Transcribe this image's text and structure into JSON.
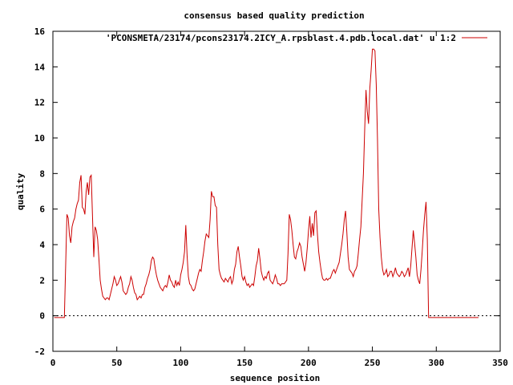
{
  "chart_data": {
    "type": "line",
    "title": "consensus based quality prediction",
    "xlabel": "sequence position",
    "ylabel": "quality",
    "xlim": [
      0,
      350
    ],
    "ylim": [
      -2,
      16
    ],
    "x_ticks": [
      0,
      50,
      100,
      150,
      200,
      250,
      300,
      350
    ],
    "y_ticks": [
      -2,
      0,
      2,
      4,
      6,
      8,
      10,
      12,
      14,
      16
    ],
    "legend_position": "top-right",
    "line_color": "#cc0000",
    "series": [
      {
        "name": "'PCONSMETA/23174/pcons23174.2ICY_A.rpsblast.4.pdb.local.dat' u 1:2",
        "points": [
          [
            1,
            -0.1
          ],
          [
            9,
            -0.1
          ],
          [
            10,
            2.8
          ],
          [
            11,
            5.7
          ],
          [
            12,
            5.5
          ],
          [
            13,
            4.5
          ],
          [
            14,
            4.1
          ],
          [
            15,
            5.0
          ],
          [
            16,
            5.3
          ],
          [
            17,
            5.5
          ],
          [
            18,
            6.0
          ],
          [
            19,
            6.3
          ],
          [
            20,
            6.5
          ],
          [
            21,
            7.5
          ],
          [
            22,
            7.9
          ],
          [
            23,
            6.1
          ],
          [
            24,
            6.0
          ],
          [
            25,
            5.7
          ],
          [
            26,
            7.0
          ],
          [
            27,
            7.5
          ],
          [
            28,
            6.8
          ],
          [
            29,
            7.8
          ],
          [
            30,
            7.9
          ],
          [
            31,
            5.6
          ],
          [
            32,
            3.3
          ],
          [
            33,
            5.0
          ],
          [
            34,
            4.8
          ],
          [
            35,
            4.3
          ],
          [
            36,
            3.2
          ],
          [
            37,
            2.0
          ],
          [
            38,
            1.5
          ],
          [
            39,
            1.1
          ],
          [
            40,
            1.0
          ],
          [
            41,
            0.9
          ],
          [
            42,
            1.0
          ],
          [
            43,
            1.0
          ],
          [
            44,
            0.9
          ],
          [
            45,
            1.2
          ],
          [
            46,
            1.5
          ],
          [
            47,
            1.8
          ],
          [
            48,
            2.2
          ],
          [
            49,
            2.0
          ],
          [
            50,
            1.7
          ],
          [
            51,
            1.8
          ],
          [
            52,
            2.0
          ],
          [
            53,
            2.2
          ],
          [
            54,
            1.9
          ],
          [
            55,
            1.4
          ],
          [
            56,
            1.3
          ],
          [
            57,
            1.2
          ],
          [
            58,
            1.3
          ],
          [
            59,
            1.6
          ],
          [
            60,
            1.8
          ],
          [
            61,
            2.2
          ],
          [
            62,
            2.0
          ],
          [
            63,
            1.6
          ],
          [
            64,
            1.3
          ],
          [
            65,
            1.2
          ],
          [
            66,
            0.9
          ],
          [
            67,
            1.0
          ],
          [
            68,
            1.1
          ],
          [
            69,
            1.0
          ],
          [
            70,
            1.2
          ],
          [
            71,
            1.2
          ],
          [
            72,
            1.6
          ],
          [
            73,
            1.8
          ],
          [
            74,
            2.1
          ],
          [
            75,
            2.3
          ],
          [
            76,
            2.6
          ],
          [
            77,
            3.1
          ],
          [
            78,
            3.3
          ],
          [
            79,
            3.2
          ],
          [
            80,
            2.7
          ],
          [
            81,
            2.3
          ],
          [
            82,
            2.0
          ],
          [
            83,
            1.8
          ],
          [
            84,
            1.6
          ],
          [
            85,
            1.5
          ],
          [
            86,
            1.4
          ],
          [
            87,
            1.6
          ],
          [
            88,
            1.7
          ],
          [
            89,
            1.6
          ],
          [
            90,
            1.9
          ],
          [
            91,
            2.3
          ],
          [
            92,
            2.0
          ],
          [
            93,
            1.9
          ],
          [
            94,
            1.7
          ],
          [
            95,
            1.6
          ],
          [
            96,
            2.0
          ],
          [
            97,
            1.7
          ],
          [
            98,
            1.9
          ],
          [
            99,
            1.7
          ],
          [
            100,
            2.3
          ],
          [
            101,
            2.6
          ],
          [
            102,
            3.0
          ],
          [
            103,
            3.6
          ],
          [
            104,
            5.1
          ],
          [
            105,
            3.4
          ],
          [
            106,
            2.2
          ],
          [
            107,
            1.8
          ],
          [
            108,
            1.7
          ],
          [
            109,
            1.5
          ],
          [
            110,
            1.4
          ],
          [
            111,
            1.5
          ],
          [
            112,
            1.8
          ],
          [
            113,
            2.1
          ],
          [
            114,
            2.4
          ],
          [
            115,
            2.6
          ],
          [
            116,
            2.5
          ],
          [
            117,
            3.1
          ],
          [
            118,
            3.6
          ],
          [
            119,
            4.2
          ],
          [
            120,
            4.6
          ],
          [
            121,
            4.5
          ],
          [
            122,
            4.4
          ],
          [
            123,
            5.4
          ],
          [
            124,
            7.0
          ],
          [
            125,
            6.7
          ],
          [
            126,
            6.7
          ],
          [
            127,
            6.2
          ],
          [
            128,
            6.1
          ],
          [
            129,
            4.0
          ],
          [
            130,
            2.6
          ],
          [
            131,
            2.3
          ],
          [
            132,
            2.1
          ],
          [
            133,
            2.0
          ],
          [
            134,
            1.9
          ],
          [
            135,
            2.1
          ],
          [
            136,
            2.0
          ],
          [
            137,
            1.9
          ],
          [
            138,
            2.1
          ],
          [
            139,
            2.2
          ],
          [
            140,
            1.8
          ],
          [
            141,
            2.0
          ],
          [
            142,
            2.6
          ],
          [
            143,
            2.9
          ],
          [
            144,
            3.6
          ],
          [
            145,
            3.9
          ],
          [
            146,
            3.3
          ],
          [
            147,
            2.8
          ],
          [
            148,
            2.2
          ],
          [
            149,
            2.0
          ],
          [
            150,
            2.2
          ],
          [
            151,
            1.9
          ],
          [
            152,
            1.7
          ],
          [
            153,
            1.8
          ],
          [
            154,
            1.6
          ],
          [
            155,
            1.7
          ],
          [
            156,
            1.8
          ],
          [
            157,
            1.7
          ],
          [
            158,
            2.2
          ],
          [
            159,
            2.8
          ],
          [
            160,
            3.1
          ],
          [
            161,
            3.8
          ],
          [
            162,
            3.2
          ],
          [
            163,
            2.5
          ],
          [
            164,
            2.2
          ],
          [
            165,
            2.0
          ],
          [
            166,
            2.2
          ],
          [
            167,
            2.1
          ],
          [
            168,
            2.4
          ],
          [
            169,
            2.5
          ],
          [
            170,
            2.0
          ],
          [
            171,
            1.9
          ],
          [
            172,
            1.8
          ],
          [
            173,
            2.0
          ],
          [
            174,
            2.3
          ],
          [
            175,
            2.1
          ],
          [
            176,
            1.8
          ],
          [
            177,
            1.8
          ],
          [
            178,
            1.7
          ],
          [
            179,
            1.8
          ],
          [
            180,
            1.8
          ],
          [
            181,
            1.8
          ],
          [
            182,
            1.9
          ],
          [
            183,
            2.0
          ],
          [
            184,
            3.5
          ],
          [
            185,
            5.7
          ],
          [
            186,
            5.4
          ],
          [
            187,
            4.8
          ],
          [
            188,
            4.0
          ],
          [
            189,
            3.3
          ],
          [
            190,
            3.2
          ],
          [
            191,
            3.6
          ],
          [
            192,
            3.8
          ],
          [
            193,
            4.1
          ],
          [
            194,
            3.9
          ],
          [
            195,
            3.3
          ],
          [
            196,
            2.9
          ],
          [
            197,
            2.5
          ],
          [
            198,
            3.0
          ],
          [
            199,
            3.8
          ],
          [
            200,
            4.8
          ],
          [
            201,
            5.6
          ],
          [
            202,
            4.4
          ],
          [
            203,
            5.2
          ],
          [
            204,
            4.5
          ],
          [
            205,
            5.8
          ],
          [
            206,
            5.9
          ],
          [
            207,
            4.6
          ],
          [
            208,
            3.6
          ],
          [
            209,
            3.0
          ],
          [
            210,
            2.5
          ],
          [
            211,
            2.1
          ],
          [
            212,
            2.0
          ],
          [
            213,
            2.0
          ],
          [
            214,
            2.1
          ],
          [
            215,
            2.0
          ],
          [
            216,
            2.1
          ],
          [
            217,
            2.1
          ],
          [
            218,
            2.3
          ],
          [
            219,
            2.5
          ],
          [
            220,
            2.6
          ],
          [
            221,
            2.4
          ],
          [
            222,
            2.6
          ],
          [
            223,
            2.8
          ],
          [
            224,
            3.0
          ],
          [
            225,
            3.5
          ],
          [
            226,
            4.0
          ],
          [
            227,
            4.6
          ],
          [
            228,
            5.4
          ],
          [
            229,
            5.9
          ],
          [
            230,
            4.7
          ],
          [
            231,
            3.3
          ],
          [
            232,
            2.6
          ],
          [
            233,
            2.5
          ],
          [
            234,
            2.4
          ],
          [
            235,
            2.2
          ],
          [
            236,
            2.5
          ],
          [
            237,
            2.6
          ],
          [
            238,
            2.8
          ],
          [
            239,
            3.5
          ],
          [
            240,
            4.3
          ],
          [
            241,
            5.0
          ],
          [
            242,
            6.5
          ],
          [
            243,
            8.0
          ],
          [
            244,
            10.5
          ],
          [
            245,
            12.7
          ],
          [
            246,
            11.5
          ],
          [
            247,
            10.8
          ],
          [
            248,
            12.8
          ],
          [
            249,
            13.8
          ],
          [
            250,
            15.0
          ],
          [
            251,
            15.0
          ],
          [
            252,
            14.9
          ],
          [
            253,
            13.0
          ],
          [
            254,
            10.0
          ],
          [
            255,
            6.0
          ],
          [
            256,
            4.4
          ],
          [
            257,
            3.3
          ],
          [
            258,
            2.6
          ],
          [
            259,
            2.3
          ],
          [
            260,
            2.4
          ],
          [
            261,
            2.6
          ],
          [
            262,
            2.2
          ],
          [
            263,
            2.3
          ],
          [
            264,
            2.5
          ],
          [
            265,
            2.5
          ],
          [
            266,
            2.2
          ],
          [
            267,
            2.4
          ],
          [
            268,
            2.7
          ],
          [
            269,
            2.4
          ],
          [
            270,
            2.3
          ],
          [
            271,
            2.2
          ],
          [
            272,
            2.3
          ],
          [
            273,
            2.5
          ],
          [
            274,
            2.4
          ],
          [
            275,
            2.2
          ],
          [
            276,
            2.3
          ],
          [
            277,
            2.5
          ],
          [
            278,
            2.7
          ],
          [
            279,
            2.2
          ],
          [
            280,
            2.8
          ],
          [
            281,
            3.8
          ],
          [
            282,
            4.8
          ],
          [
            283,
            4.1
          ],
          [
            284,
            3.3
          ],
          [
            285,
            2.3
          ],
          [
            286,
            2.0
          ],
          [
            287,
            1.8
          ],
          [
            288,
            2.6
          ],
          [
            289,
            3.6
          ],
          [
            290,
            4.8
          ],
          [
            291,
            5.7
          ],
          [
            292,
            6.4
          ],
          [
            293,
            4.3
          ],
          [
            294,
            -0.1
          ],
          [
            333,
            -0.1
          ]
        ]
      }
    ]
  }
}
